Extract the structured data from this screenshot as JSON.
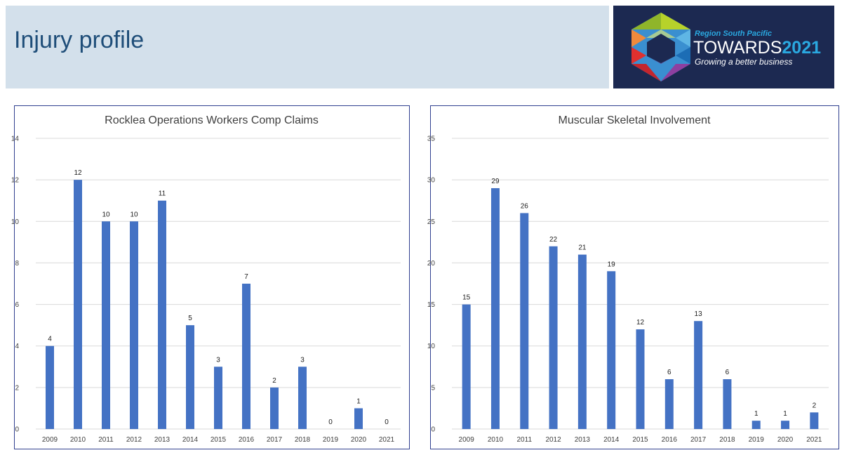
{
  "header": {
    "title": "Injury profile"
  },
  "logo": {
    "subtitle": "Region South Pacific",
    "main_text": "TOWARDS",
    "main_year": "2021",
    "tagline": "Growing a better business",
    "background": "#1c2951",
    "accent": "#2aa8e0"
  },
  "colors": {
    "bar": "#4472c4",
    "gridline": "#d9d9d9",
    "panel_border": "#2f3f8f",
    "title_bar": "#d3e0eb"
  },
  "chart_data": [
    {
      "type": "bar",
      "title": "Rocklea Operations Workers Comp Claims",
      "categories": [
        "2009",
        "2010",
        "2011",
        "2012",
        "2013",
        "2014",
        "2015",
        "2016",
        "2017",
        "2018",
        "2019",
        "2020",
        "2021"
      ],
      "values": [
        4,
        12,
        10,
        10,
        11,
        5,
        3,
        7,
        2,
        3,
        0,
        1,
        0
      ],
      "ylim": [
        0,
        14
      ],
      "yticks": [
        0,
        2,
        4,
        6,
        8,
        10,
        12,
        14
      ],
      "grid": true,
      "data_labels": true
    },
    {
      "type": "bar",
      "title": "Muscular Skeletal Involvement",
      "categories": [
        "2009",
        "2010",
        "2011",
        "2012",
        "2013",
        "2014",
        "2015",
        "2016",
        "2017",
        "2018",
        "2019",
        "2020",
        "2021"
      ],
      "values": [
        15,
        29,
        26,
        22,
        21,
        19,
        12,
        6,
        13,
        6,
        1,
        1,
        2
      ],
      "ylim": [
        0,
        35
      ],
      "yticks": [
        0,
        5,
        10,
        15,
        20,
        25,
        30,
        35
      ],
      "grid": true,
      "data_labels": true
    }
  ]
}
